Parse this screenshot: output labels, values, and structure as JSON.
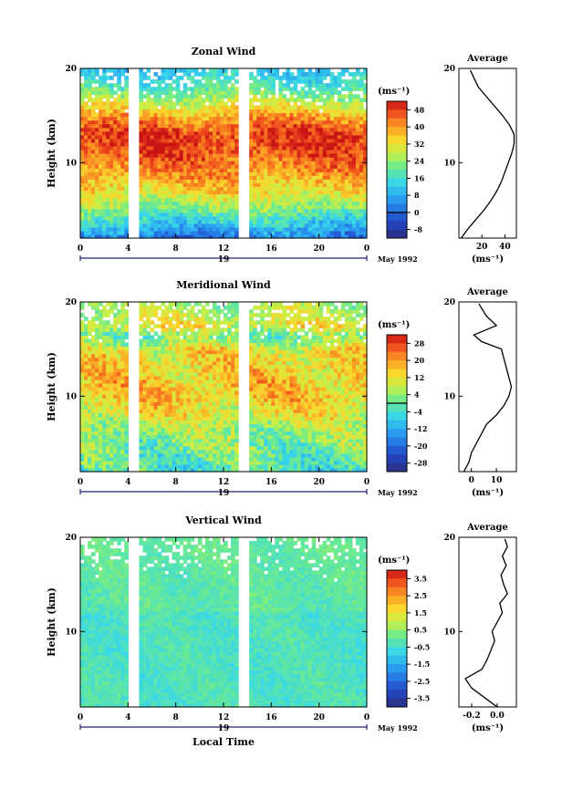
{
  "chart_data": [
    {
      "type": "heatmap",
      "title": "Zonal Wind",
      "ylabel": "Height (km)",
      "ylim": [
        2,
        20
      ],
      "yticks": [
        "20",
        "10"
      ],
      "xticks": [
        "0",
        "4",
        "8",
        "12",
        "16",
        "20",
        "0"
      ],
      "xlim": [
        0,
        24
      ],
      "date_day": "19",
      "date_label": "May 1992",
      "data_gaps_hours": [
        [
          4.1,
          5.0
        ],
        [
          13.2,
          14.1
        ]
      ],
      "colorbar": {
        "unit_label": "(ms⁻¹)",
        "ticks": [
          "48",
          "40",
          "32",
          "24",
          "16",
          "8",
          "0",
          "-8"
        ],
        "range": [
          -12,
          52
        ],
        "zero_line": true
      },
      "avg_profile": {
        "title": "Average",
        "xticks": [
          "20",
          "40"
        ],
        "xlim": [
          0,
          50
        ],
        "xlabel": "(ms⁻¹)",
        "yticks": [
          "20",
          "10"
        ],
        "heights_km": [
          2,
          3,
          4,
          5,
          6,
          7,
          8,
          9,
          10,
          11,
          12,
          13,
          14,
          15,
          16,
          17,
          18,
          19,
          19.8
        ],
        "values": [
          2,
          8,
          15,
          22,
          28,
          33,
          37,
          40,
          43,
          46,
          48,
          48,
          44,
          38,
          31,
          24,
          17,
          13,
          10
        ]
      }
    },
    {
      "type": "heatmap",
      "title": "Meridional Wind",
      "ylabel": "Height (km)",
      "ylim": [
        2,
        20
      ],
      "yticks": [
        "20",
        "10"
      ],
      "xticks": [
        "0",
        "4",
        "8",
        "12",
        "16",
        "20",
        "0"
      ],
      "xlim": [
        0,
        24
      ],
      "date_day": "19",
      "date_label": "May 1992",
      "data_gaps_hours": [
        [
          4.1,
          5.0
        ],
        [
          13.2,
          14.1
        ]
      ],
      "colorbar": {
        "unit_label": "(ms⁻¹)",
        "ticks": [
          "28",
          "20",
          "12",
          "4",
          "-4",
          "-12",
          "-20",
          "-28"
        ],
        "range": [
          -32,
          32
        ],
        "zero_line": true
      },
      "avg_profile": {
        "title": "Average",
        "xticks": [
          "0",
          "10"
        ],
        "xlim": [
          -5,
          18
        ],
        "xlabel": "(ms⁻¹)",
        "yticks": [
          "20",
          "10"
        ],
        "heights_km": [
          2,
          3,
          4,
          5,
          6,
          7,
          8,
          9,
          10,
          11,
          12,
          13,
          14,
          15,
          15.8,
          16.5,
          17.5,
          18.5,
          19.8
        ],
        "values": [
          -3,
          -1,
          0,
          2,
          4,
          6,
          10,
          13,
          15,
          16,
          15,
          14,
          13,
          12,
          4,
          1,
          10,
          6,
          3
        ]
      }
    },
    {
      "type": "heatmap",
      "title": "Vertical Wind",
      "ylabel": "Height (km)",
      "xlabel": "Local Time",
      "ylim": [
        2,
        20
      ],
      "yticks": [
        "20",
        "10"
      ],
      "xticks": [
        "0",
        "4",
        "8",
        "12",
        "16",
        "20",
        "0"
      ],
      "xlim": [
        0,
        24
      ],
      "date_day": "19",
      "date_label": "May 1992",
      "data_gaps_hours": [
        [
          4.1,
          5.0
        ],
        [
          13.2,
          14.1
        ]
      ],
      "colorbar": {
        "unit_label": "(ms⁻¹)",
        "ticks": [
          "3.5",
          "2.5",
          "1.5",
          "0.5",
          "-0.5",
          "-1.5",
          "-2.5",
          "-3.5"
        ],
        "range": [
          -4,
          4
        ],
        "zero_line": false
      },
      "avg_profile": {
        "title": "Average",
        "xticks": [
          "-0.2",
          "0.0"
        ],
        "xlim": [
          -0.3,
          0.15
        ],
        "xlabel": "(ms⁻¹)",
        "yticks": [
          "20",
          "10"
        ],
        "heights_km": [
          2,
          3,
          4,
          5,
          6,
          7,
          8,
          9,
          10,
          11,
          12,
          13,
          14,
          15,
          16,
          17,
          18,
          19,
          19.8
        ],
        "values": [
          0.0,
          -0.1,
          -0.2,
          -0.25,
          -0.12,
          -0.08,
          -0.05,
          -0.02,
          -0.04,
          0.0,
          0.04,
          0.02,
          0.08,
          0.05,
          0.03,
          0.07,
          0.04,
          0.08,
          0.06
        ]
      }
    }
  ]
}
